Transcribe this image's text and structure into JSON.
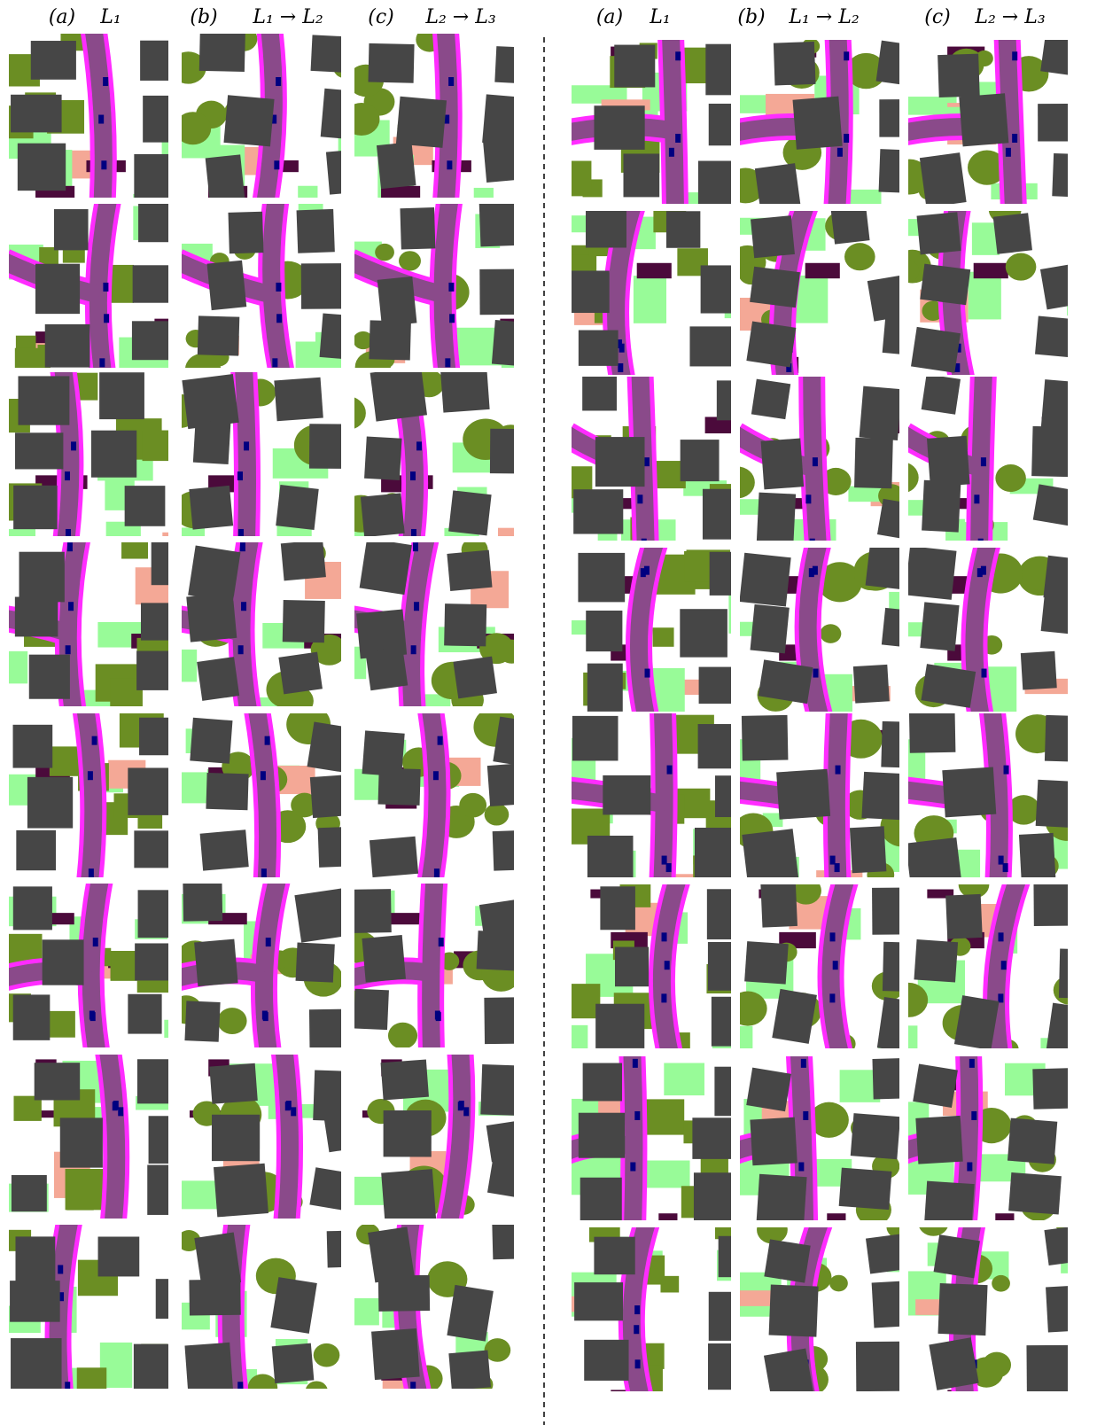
{
  "panels": [
    {
      "columns": [
        {
          "tag": "(a)",
          "label": "L₁"
        },
        {
          "tag": "(b)",
          "label": "L₁ → L₂"
        },
        {
          "tag": "(c)",
          "label": "L₂ → L₃"
        }
      ]
    },
    {
      "columns": [
        {
          "tag": "(a)",
          "label": "L₁"
        },
        {
          "tag": "(b)",
          "label": "L₁ → L₂"
        },
        {
          "tag": "(c)",
          "label": "L₂ → L₃"
        }
      ]
    }
  ]
}
